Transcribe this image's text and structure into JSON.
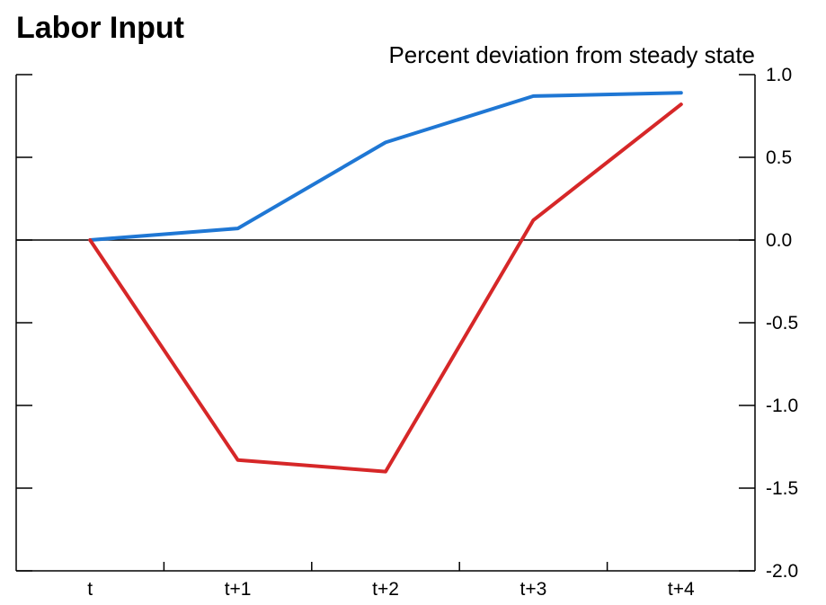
{
  "chart_data": {
    "type": "line",
    "title": "Labor Input",
    "subtitle": "Percent deviation from steady state",
    "categories": [
      "t",
      "t+1",
      "t+2",
      "t+3",
      "t+4"
    ],
    "y_tick_labels": [
      "1.0",
      "0.5",
      "0.0",
      "-0.5",
      "-1.0",
      "-1.5",
      "-2.0"
    ],
    "y_ticks": [
      1.0,
      0.5,
      0.0,
      -0.5,
      -1.0,
      -1.5,
      -2.0
    ],
    "ylim": [
      -2.0,
      1.0
    ],
    "y_axis_side": "right",
    "zero_line": true,
    "grid": false,
    "legend": "none",
    "series": [
      {
        "color": "#1f77d4",
        "values": [
          0.0,
          0.07,
          0.59,
          0.87,
          0.89
        ]
      },
      {
        "color": "#d62728",
        "values": [
          0.0,
          -1.33,
          -1.4,
          0.12,
          0.82
        ]
      }
    ]
  }
}
